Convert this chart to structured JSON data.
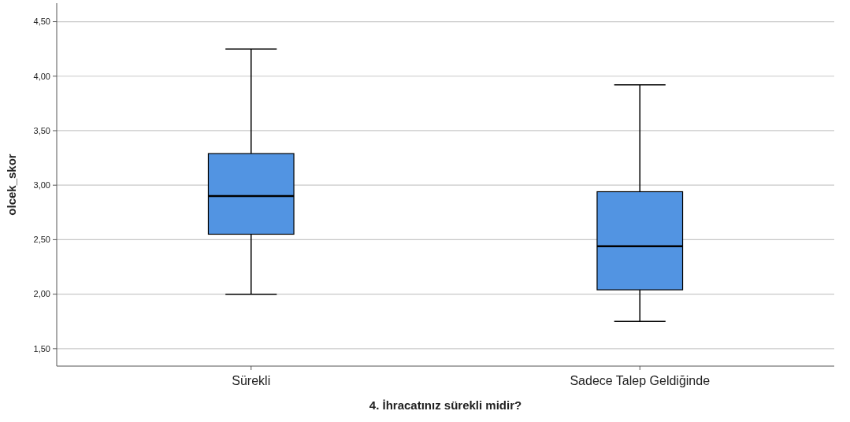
{
  "chart_data": {
    "type": "box",
    "xlabel": "4. İhracatınız sürekli midir?",
    "ylabel": "olcek_skor",
    "categories": [
      "Sürekli",
      "Sadece Talep Geldiğinde"
    ],
    "color": "#5294e2",
    "boxes": [
      {
        "low": 2.0,
        "q1": 2.55,
        "median": 2.9,
        "q3": 3.29,
        "high": 4.25
      },
      {
        "low": 1.75,
        "q1": 2.04,
        "median": 2.44,
        "q3": 2.94,
        "high": 3.92
      }
    ],
    "ylim": [
      1.34,
      4.67
    ],
    "yticks": [
      {
        "value": 1.5,
        "label": "1,50"
      },
      {
        "value": 2,
        "label": "2,00"
      },
      {
        "value": 2.5,
        "label": "2,50"
      },
      {
        "value": 3,
        "label": "3,00"
      },
      {
        "value": 3.5,
        "label": "3,50"
      },
      {
        "value": 4,
        "label": "4,00"
      },
      {
        "value": 4.5,
        "label": "4,50"
      }
    ],
    "grid": "y"
  }
}
